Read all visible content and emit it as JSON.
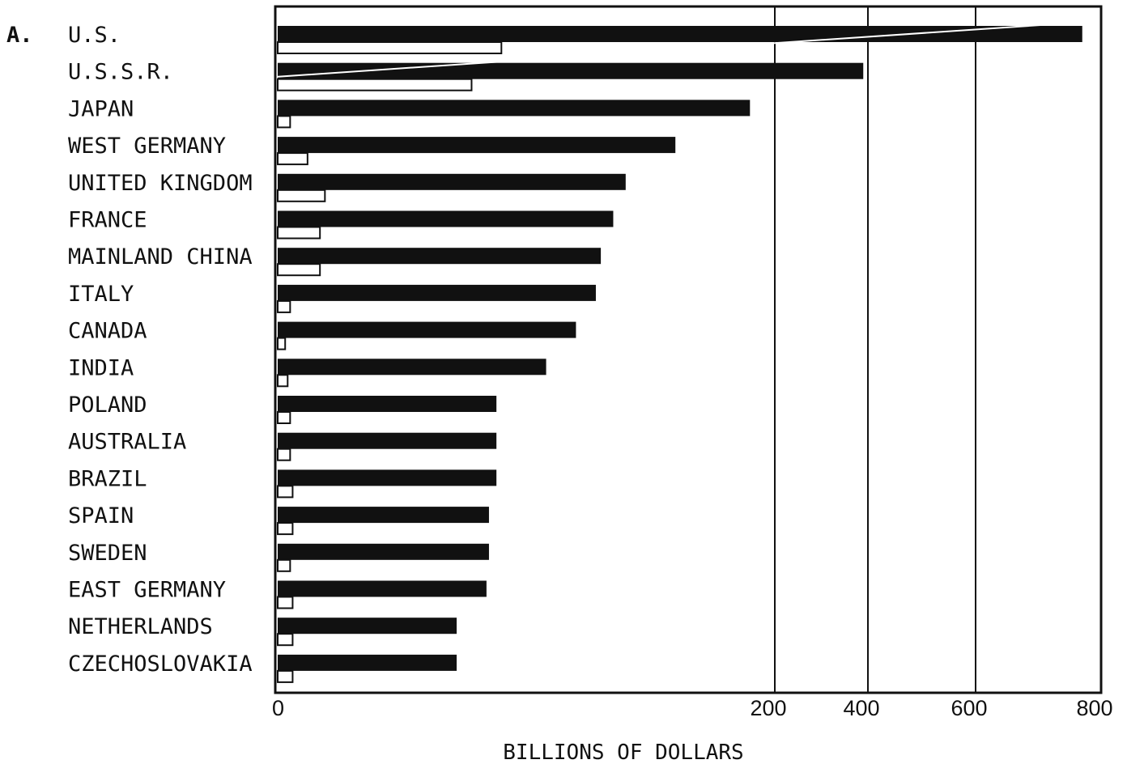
{
  "chart_data": {
    "type": "bar",
    "panel_label": "A.",
    "title": "",
    "xlabel": "BILLIONS OF DOLLARS",
    "ylabel": "",
    "x_ticks": [
      "0",
      "200",
      "400",
      "600",
      "800"
    ],
    "x_tick_values": [
      0,
      200,
      400,
      600,
      800
    ],
    "xlim": [
      0,
      800
    ],
    "scale_note": "non-linear axis: 0 to 200 occupies most of the width; 200, 400, 600, 800 spaced more tightly",
    "grid": "vertical lines at 200, 400, 600",
    "orientation": "horizontal",
    "categories": [
      "U.S.",
      "U.S.S.R.",
      "JAPAN",
      "WEST GERMANY",
      "UNITED KINGDOM",
      "FRANCE",
      "MAINLAND CHINA",
      "ITALY",
      "CANADA",
      "INDIA",
      "POLAND",
      "AUSTRALIA",
      "BRAZIL",
      "SPAIN",
      "SWEDEN",
      "EAST GERMANY",
      "NETHERLANDS",
      "CZECHOSLOVAKIA"
    ],
    "series": [
      {
        "color": "#111111",
        "fill": "solid",
        "values": [
          770,
          390,
          190,
          160,
          140,
          135,
          130,
          128,
          120,
          108,
          88,
          88,
          88,
          85,
          85,
          84,
          72,
          72
        ]
      },
      {
        "color": "#ffffff",
        "fill": "outline",
        "values": [
          90,
          78,
          5,
          12,
          19,
          17,
          17,
          5,
          3,
          4,
          5,
          5,
          6,
          6,
          5,
          6,
          6,
          6
        ]
      }
    ]
  }
}
